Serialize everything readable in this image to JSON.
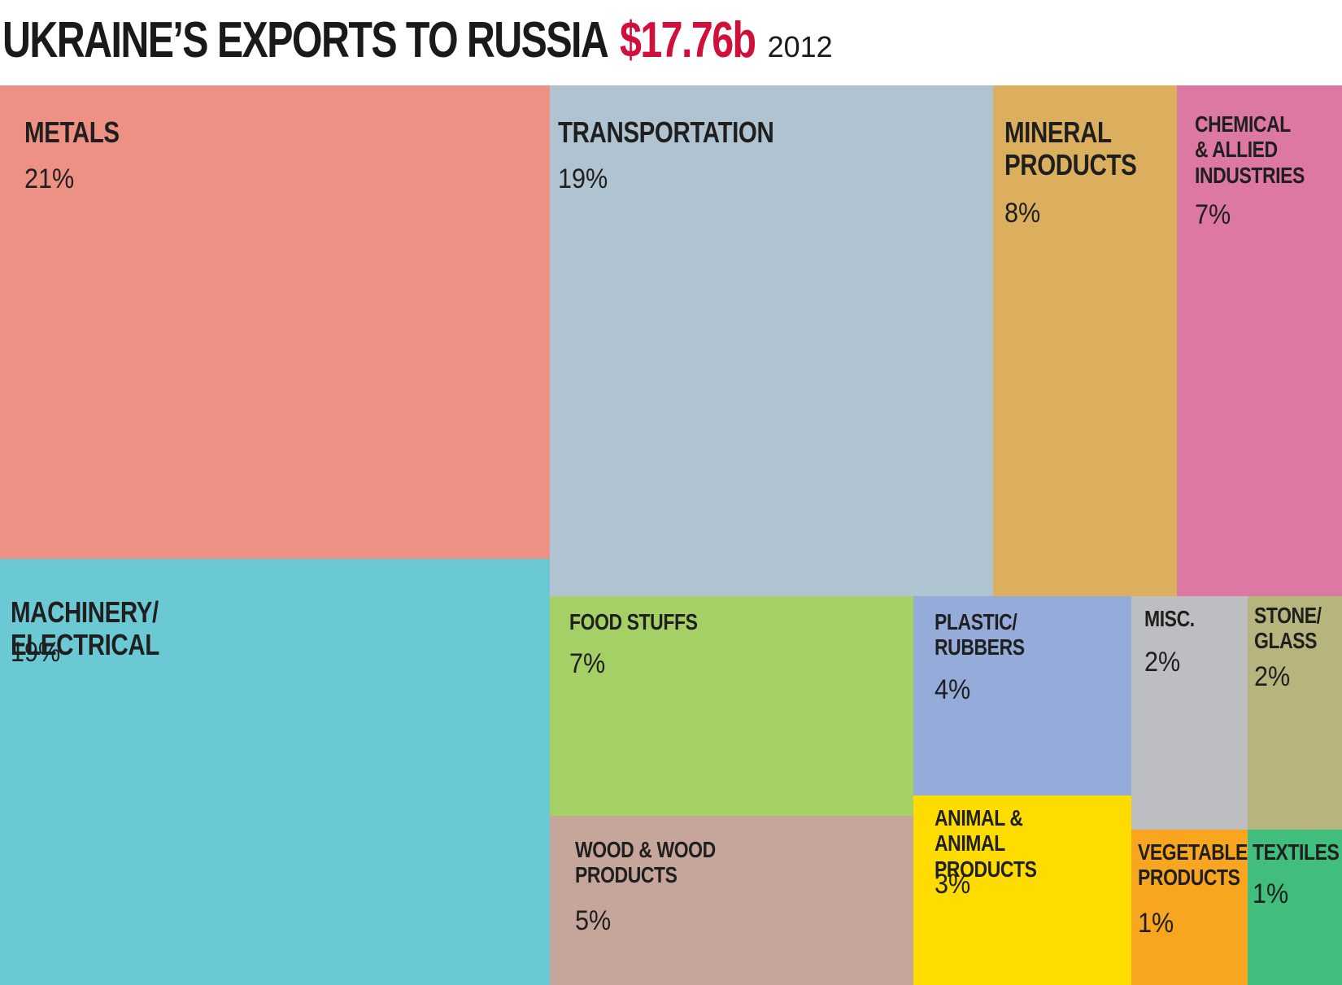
{
  "title": {
    "main": "UKRAINE’S EXPORTS TO RUSSIA",
    "amount": "$17.76b",
    "year": "2012"
  },
  "colors": {
    "amount": "#d0103a"
  },
  "chart_data": {
    "type": "treemap",
    "title": "UKRAINE’S EXPORTS TO RUSSIA $17.76b 2012",
    "total": "$17.76b",
    "year": "2012",
    "items": [
      {
        "label": "METALS",
        "value": 21,
        "value_label": "21%",
        "color": "#ec9184"
      },
      {
        "label": "MACHINERY/\nELECTRICAL",
        "value": 19,
        "value_label": "19%",
        "color": "#6ac9d3"
      },
      {
        "label": "TRANSPORTATION",
        "value": 19,
        "value_label": "19%",
        "color": "#afc4d0"
      },
      {
        "label": "MINERAL\nPRODUCTS",
        "value": 8,
        "value_label": "8%",
        "color": "#dbaf5d"
      },
      {
        "label": "CHEMICAL\n& ALLIED\nINDUSTRIES",
        "value": 7,
        "value_label": "7%",
        "color": "#dc78a3"
      },
      {
        "label": "FOOD STUFFS",
        "value": 7,
        "value_label": "7%",
        "color": "#a4d065"
      },
      {
        "label": "WOOD & WOOD\nPRODUCTS",
        "value": 5,
        "value_label": "5%",
        "color": "#c6a69a"
      },
      {
        "label": "PLASTIC/\nRUBBERS",
        "value": 4,
        "value_label": "4%",
        "color": "#95acda"
      },
      {
        "label": "ANIMAL &\nANIMAL PRODUCTS",
        "value": 3,
        "value_label": "3%",
        "color": "#fedc00"
      },
      {
        "label": "MISC.",
        "value": 2,
        "value_label": "2%",
        "color": "#bdbec1"
      },
      {
        "label": "STONE/\nGLASS",
        "value": 2,
        "value_label": "2%",
        "color": "#b7b47e"
      },
      {
        "label": "VEGETABLE\nPRODUCTS",
        "value": 1,
        "value_label": "1%",
        "color": "#f8a520"
      },
      {
        "label": "TEXTILES",
        "value": 1,
        "value_label": "1%",
        "color": "#41bd7d"
      }
    ]
  }
}
